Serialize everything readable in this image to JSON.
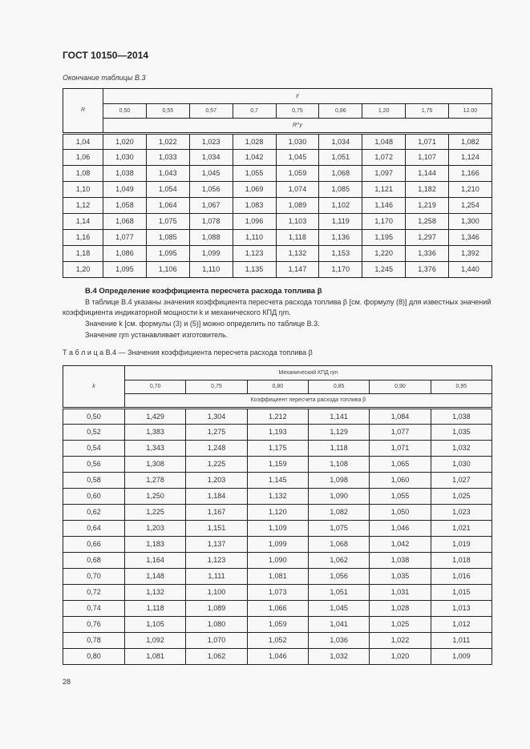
{
  "header": {
    "doc_title": "ГОСТ 10150—2014"
  },
  "table_b3": {
    "continuation_label": "Окончание таблицы В.3",
    "row_header": "R",
    "group_header": "y",
    "sub_header": "R^y",
    "columns": [
      "0,50",
      "0,55",
      "0,57",
      "0,7",
      "0,75",
      "0,86",
      "1,20",
      "1,75",
      "12.00"
    ],
    "rows": [
      [
        "1,04",
        "1,020",
        "1,022",
        "1,023",
        "1,028",
        "1,030",
        "1,034",
        "1,048",
        "1,071",
        "1,082"
      ],
      [
        "1,06",
        "1,030",
        "1,033",
        "1,034",
        "1,042",
        "1,045",
        "1,051",
        "1,072",
        "1,107",
        "1,124"
      ],
      [
        "1,08",
        "1,038",
        "1,043",
        "1,045",
        "1,055",
        "1,059",
        "1,068",
        "1,097",
        "1,144",
        "1,166"
      ],
      [
        "1,10",
        "1,049",
        "1,054",
        "1,056",
        "1,069",
        "1,074",
        "1,085",
        "1,121",
        "1,182",
        "1,210"
      ],
      [
        "1,12",
        "1,058",
        "1,064",
        "1,067",
        "1,083",
        "1,089",
        "1,102",
        "1,146",
        "1,219",
        "1,254"
      ],
      [
        "1,14",
        "1,068",
        "1,075",
        "1,078",
        "1,096",
        "1,103",
        "1,119",
        "1,170",
        "1,258",
        "1,300"
      ],
      [
        "1,16",
        "1,077",
        "1,085",
        "1,088",
        "1,110",
        "1,118",
        "1,136",
        "1,195",
        "1,297",
        "1,346"
      ],
      [
        "1,18",
        "1,086",
        "1,095",
        "1,099",
        "1,123",
        "1,132",
        "1,153",
        "1,220",
        "1,336",
        "1,392"
      ],
      [
        "1,20",
        "1,095",
        "1,106",
        "1,110",
        "1,135",
        "1,147",
        "1,170",
        "1,245",
        "1,376",
        "1,440"
      ]
    ]
  },
  "section_b4": {
    "heading": "В.4 Определение коэффициента пересчета расхода топлива β",
    "paragraph1": "В таблице В.4 указаны значения коэффициента пересчета расхода топлива β [см. формулу (8)] для известных значений коэффициента индикаторной мощности k и механического КПД ηm.",
    "paragraph2": "Значение k [см. формулы (3) и (5)] можно определить по таблице В.3.",
    "paragraph3": "Значение ηm устанавливает изготовитель."
  },
  "table_b4": {
    "caption": "Т а б л и ц а  В.4 — Значения коэффициента пересчета расхода топлива β",
    "row_header": "k",
    "group_header": "Механический КПД ηm",
    "sub_header": "Коэффициент пересчета расхода топлива β",
    "columns": [
      "0,70",
      "0,75",
      "0,80",
      "0,85",
      "0,90",
      "0,95"
    ],
    "rows": [
      [
        "0,50",
        "1,429",
        "1,304",
        "1,212",
        "1,141",
        "1,084",
        "1,038"
      ],
      [
        "0,52",
        "1,383",
        "1,275",
        "1,193",
        "1,129",
        "1,077",
        "1,035"
      ],
      [
        "0,54",
        "1,343",
        "1,248",
        "1,175",
        "1,118",
        "1,071",
        "1,032"
      ],
      [
        "0,56",
        "1,308",
        "1,225",
        "1,159",
        "1,108",
        "1,065",
        "1,030"
      ],
      [
        "0,58",
        "1,278",
        "1,203",
        "1,145",
        "1,098",
        "1,060",
        "1,027"
      ],
      [
        "0,60",
        "1,250",
        "1,184",
        "1,132",
        "1,090",
        "1,055",
        "1,025"
      ],
      [
        "0,62",
        "1,225",
        "1,167",
        "1,120",
        "1,082",
        "1,050",
        "1,023"
      ],
      [
        "0,64",
        "1,203",
        "1,151",
        "1,109",
        "1,075",
        "1,046",
        "1,021"
      ],
      [
        "0,66",
        "1,183",
        "1,137",
        "1,099",
        "1,068",
        "1,042",
        "1,019"
      ],
      [
        "0,68",
        "1,164",
        "1,123",
        "1,090",
        "1,062",
        "1,038",
        "1,018"
      ],
      [
        "0,70",
        "1,148",
        "1,111",
        "1,081",
        "1,056",
        "1,035",
        "1,016"
      ],
      [
        "0,72",
        "1,132",
        "1,100",
        "1,073",
        "1,051",
        "1,031",
        "1,015"
      ],
      [
        "0,74",
        "1,118",
        "1,089",
        "1,066",
        "1,045",
        "1,028",
        "1,013"
      ],
      [
        "0,76",
        "1,105",
        "1,080",
        "1,059",
        "1,041",
        "1,025",
        "1,012"
      ],
      [
        "0,78",
        "1,092",
        "1,070",
        "1,052",
        "1,036",
        "1,022",
        "1,011"
      ],
      [
        "0,80",
        "1,081",
        "1,062",
        "1,046",
        "1,032",
        "1,020",
        "1,009"
      ]
    ]
  },
  "footer": {
    "page_number": "28"
  }
}
